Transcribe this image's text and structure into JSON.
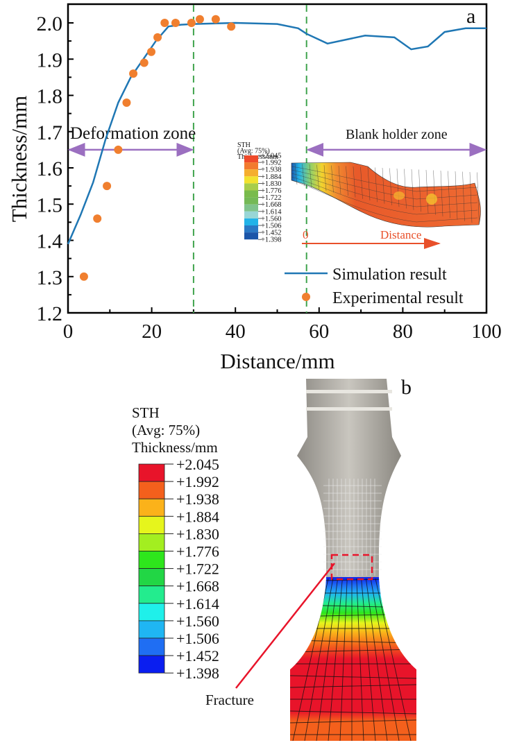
{
  "chart_data": {
    "type": "line",
    "panel_label": "a",
    "xlabel": "Distance/mm",
    "ylabel": "Thickness/mm",
    "xlim": [
      0,
      100
    ],
    "ylim": [
      1.2,
      2.05
    ],
    "xticks": [
      0,
      20,
      40,
      60,
      80,
      100
    ],
    "yticks": [
      1.2,
      1.3,
      1.4,
      1.5,
      1.6,
      1.7,
      1.8,
      1.9,
      2.0
    ],
    "ytick_labels": [
      "1.2",
      "1.3",
      "1.4",
      "1.5",
      "1.6",
      "1.7",
      "1.8",
      "1.9",
      "2.0"
    ],
    "grid": false,
    "series": [
      {
        "name": "Simulation result",
        "kind": "line",
        "color": "#1f77b4",
        "x": [
          0,
          3,
          6,
          9,
          12,
          15,
          18,
          21,
          24,
          27,
          30,
          40,
          50,
          55,
          57,
          62,
          71,
          78,
          82,
          86,
          90,
          95,
          100
        ],
        "y": [
          1.39,
          1.47,
          1.56,
          1.68,
          1.78,
          1.85,
          1.9,
          1.95,
          1.99,
          1.995,
          1.997,
          2.0,
          1.997,
          1.985,
          1.97,
          1.943,
          1.965,
          1.96,
          1.927,
          1.935,
          1.975,
          1.985,
          1.985
        ]
      },
      {
        "name": "Experimental result",
        "kind": "scatter",
        "color": "#f07f2f",
        "x": [
          3.8,
          7.0,
          9.3,
          12.0,
          14.0,
          15.6,
          18.2,
          19.9,
          21.4,
          23.1,
          25.7,
          29.5,
          31.5,
          35.3,
          39.0
        ],
        "y": [
          1.3,
          1.46,
          1.55,
          1.65,
          1.78,
          1.86,
          1.89,
          1.92,
          1.96,
          2.0,
          2.0,
          2.0,
          2.01,
          2.01,
          1.99
        ]
      }
    ],
    "legend": {
      "placement": "bottom-right",
      "entries": [
        "Simulation result",
        "Experimental result"
      ]
    },
    "vlines": [
      30,
      57
    ],
    "annotations": {
      "deformation_zone": {
        "label": "Deformation zone",
        "from": 0,
        "to": 30,
        "y": 1.65
      },
      "blank_holder_zone": {
        "label": "Blank holder zone",
        "from": 57,
        "to": 100,
        "y": 1.65
      },
      "inset_distance_label": "Distance",
      "inset_zero_label": "0"
    }
  },
  "legend_scale": {
    "title_lines": [
      "STH",
      "(Avg: 75%)",
      "Thickness/mm"
    ],
    "values": [
      "+2.045",
      "+1.992",
      "+1.938",
      "+1.884",
      "+1.830",
      "+1.776",
      "+1.722",
      "+1.668",
      "+1.614",
      "+1.560",
      "+1.506",
      "+1.452",
      "+1.398"
    ],
    "colors_b": [
      "#e8142a",
      "#f4601c",
      "#fbb21a",
      "#e6f51c",
      "#a3ee20",
      "#2ee61c",
      "#22d645",
      "#23ec8e",
      "#1ff0ea",
      "#1fb6f3",
      "#1f6ef3",
      "#0a1ef0"
    ],
    "colors_a": [
      "#ef4a2a",
      "#f27a2e",
      "#f5ae2e",
      "#f2e22e",
      "#a8cd4a",
      "#79bb4c",
      "#74b956",
      "#7fc38c",
      "#98d6d6",
      "#22b3e8",
      "#2a78c4",
      "#1b55a8"
    ]
  },
  "panel_b": {
    "panel_label": "b",
    "fracture_label": "Fracture"
  }
}
